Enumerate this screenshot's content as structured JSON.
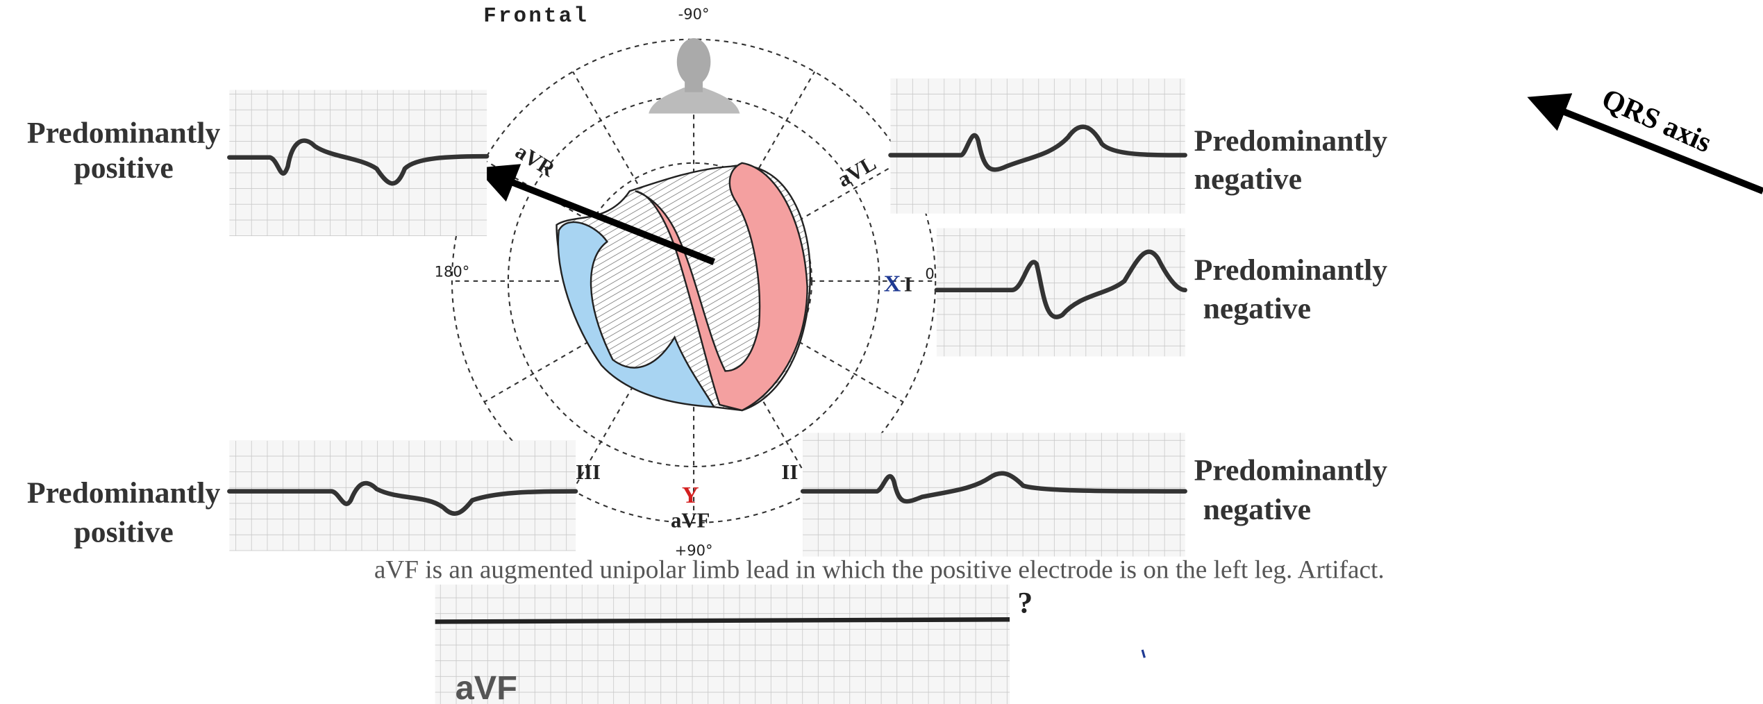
{
  "diagram": {
    "title": "Frontal",
    "angles": {
      "top": "-90°",
      "left": "180°",
      "right": "0",
      "bottom": "+90°"
    },
    "leads": {
      "avr": "aVR",
      "avl": "aVL",
      "i": "I",
      "ii": "II",
      "iii": "III",
      "avf": "aVF"
    },
    "axes": {
      "x": "X",
      "y": "Y"
    },
    "arrow_label": "QRS axis"
  },
  "strips": [
    {
      "label": [
        "Predominantly",
        "positive"
      ]
    },
    {
      "label": [
        "Predominantly",
        "negative"
      ]
    },
    {
      "label": [
        "Predominantly",
        "negative"
      ]
    },
    {
      "label": [
        "Predominantly",
        "positive"
      ]
    },
    {
      "label": [
        "Predominantly",
        "negative"
      ]
    }
  ],
  "caption": "aVF  is an augmented unipolar limb lead in which the positive electrode is on the left leg. Artifact.",
  "bottom_strip": {
    "lead": "aVF",
    "marker": "?"
  }
}
